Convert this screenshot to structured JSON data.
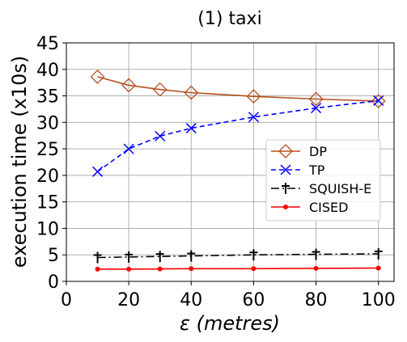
{
  "chart_data": {
    "type": "line",
    "title": "(1) taxi",
    "xlabel_symbol": "ε",
    "xlabel_unit": "(metres)",
    "ylabel": "execution time (x10s)",
    "xlim": [
      0,
      105
    ],
    "ylim": [
      0,
      45
    ],
    "x_ticks": [
      0,
      20,
      40,
      60,
      80,
      100
    ],
    "y_ticks": [
      0,
      5,
      10,
      15,
      20,
      25,
      30,
      35,
      40,
      45
    ],
    "grid": true,
    "legend_position": "center-right",
    "x": [
      10,
      20,
      30,
      40,
      60,
      80,
      100
    ],
    "series": [
      {
        "name": "DP",
        "color": "#b5501e",
        "marker": "diamond-open",
        "linestyle": "solid",
        "values": [
          38.6,
          37.0,
          36.2,
          35.6,
          34.9,
          34.4,
          34.0
        ]
      },
      {
        "name": "TP",
        "color": "#0000ff",
        "marker": "x",
        "linestyle": "dashed",
        "values": [
          20.7,
          25.0,
          27.4,
          28.9,
          31.0,
          32.7,
          34.1
        ]
      },
      {
        "name": "SQUISH-E",
        "color": "#000000",
        "marker": "dagger",
        "linestyle": "dashdot",
        "values": [
          4.5,
          4.6,
          4.7,
          4.8,
          5.0,
          5.1,
          5.2
        ]
      },
      {
        "name": "CISED",
        "color": "#ff0000",
        "marker": "circle",
        "linestyle": "solid",
        "values": [
          2.3,
          2.3,
          2.35,
          2.4,
          2.4,
          2.45,
          2.5
        ]
      }
    ]
  }
}
